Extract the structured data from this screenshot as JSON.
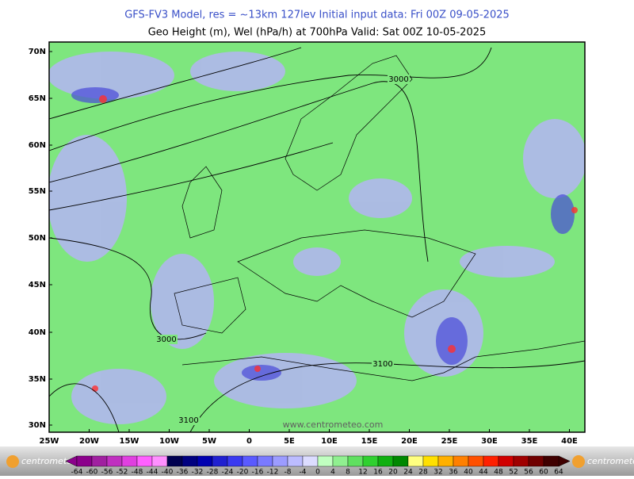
{
  "header": {
    "line1": "GFS-FV3 Model, res = ~13km 127lev    Initial input data: Fri 00Z 09-05-2025",
    "line2": "Geo Height (m), Wel (hPa/h) at 700hPa  Valid: Sat 00Z 10-05-2025"
  },
  "map": {
    "lat_labels": [
      "70N",
      "65N",
      "60N",
      "55N",
      "50N",
      "45N",
      "40N",
      "35N",
      "30N"
    ],
    "lon_labels": [
      "25W",
      "20W",
      "15W",
      "10W",
      "5W",
      "0",
      "5E",
      "10E",
      "15E",
      "20E",
      "25E",
      "30E",
      "35E",
      "40E"
    ],
    "contour_labels": [
      "3000",
      "3000",
      "3100",
      "3100"
    ],
    "watermark": "www.centrometeo.com"
  },
  "colorbar": {
    "labels": [
      -64,
      -60,
      -56,
      -52,
      -48,
      -44,
      -40,
      -36,
      -32,
      -28,
      -24,
      -20,
      -16,
      -12,
      -8,
      -4,
      0,
      4,
      8,
      12,
      16,
      20,
      24,
      28,
      32,
      36,
      40,
      44,
      48,
      52,
      56,
      60,
      64
    ],
    "colors": [
      "#8b008b",
      "#a020a0",
      "#c030c0",
      "#e040e0",
      "#ff60ff",
      "#ff90ff",
      "#000050",
      "#000080",
      "#0000b0",
      "#2020d0",
      "#3a3af0",
      "#5a5aff",
      "#7a7aff",
      "#9c9cff",
      "#bcbcff",
      "#dcdcff",
      "#c0ffc0",
      "#90f090",
      "#60e060",
      "#30d030",
      "#10b010",
      "#008800",
      "#ffff80",
      "#ffe000",
      "#ffb000",
      "#ff8000",
      "#ff5000",
      "#ff2000",
      "#d00000",
      "#a00000",
      "#700000",
      "#400000"
    ]
  },
  "footer": {
    "logo_left": "centrometeo",
    "logo_right": "centrometeo"
  }
}
